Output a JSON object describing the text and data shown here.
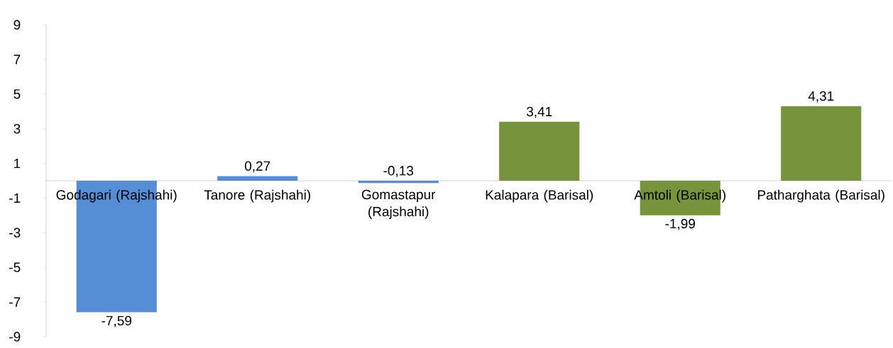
{
  "chart_data": {
    "type": "bar",
    "categories": [
      "Godagari (Rajshahi)",
      "Tanore (Rajshahi)",
      "Gomastapur (Rajshahi)",
      "Kalapara (Barisal)",
      "Amtoli (Barisal)",
      "Patharghata (Barisal)"
    ],
    "values": [
      -7.59,
      0.27,
      -0.13,
      3.41,
      -1.99,
      4.31
    ],
    "colors": [
      "#558ed5",
      "#558ed5",
      "#558ed5",
      "#77933c",
      "#77933c",
      "#77933c"
    ],
    "value_labels": [
      "-7,59",
      "0,27",
      "-0,13",
      "3,41",
      "-1,99",
      "4,31"
    ],
    "ylim": [
      -9,
      9
    ],
    "yticks": [
      -9,
      -7,
      -5,
      -3,
      -1,
      1,
      3,
      5,
      7,
      9
    ]
  }
}
